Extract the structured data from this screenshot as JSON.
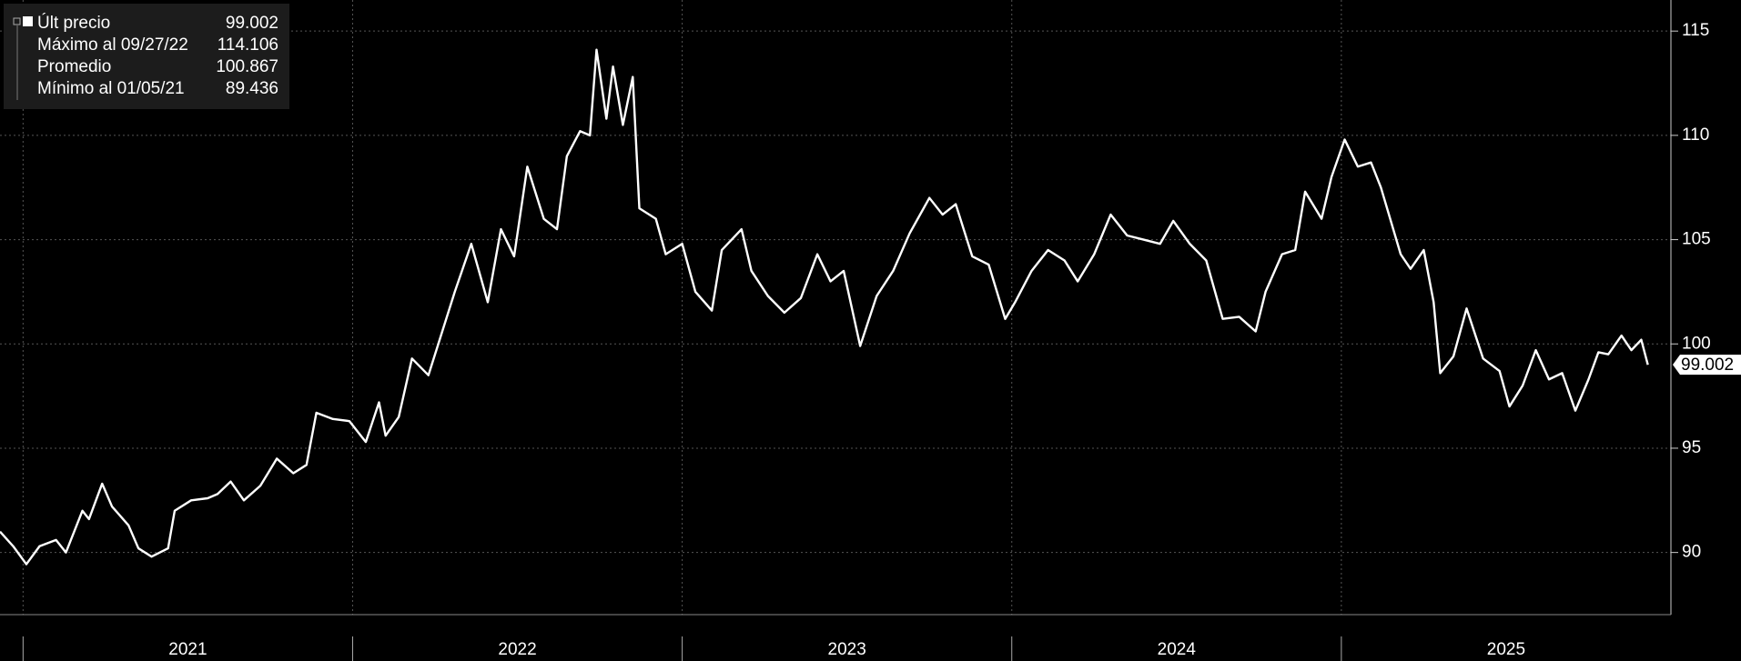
{
  "chart_data": {
    "type": "line",
    "x": [
      2020.93,
      2020.97,
      2021.01,
      2021.05,
      2021.1,
      2021.13,
      2021.18,
      2021.2,
      2021.24,
      2021.27,
      2021.32,
      2021.35,
      2021.39,
      2021.44,
      2021.46,
      2021.51,
      2021.56,
      2021.59,
      2021.63,
      2021.67,
      2021.72,
      2021.77,
      2021.82,
      2021.86,
      2021.89,
      2021.94,
      2021.99,
      2022.04,
      2022.08,
      2022.1,
      2022.14,
      2022.18,
      2022.23,
      2022.26,
      2022.31,
      2022.36,
      2022.41,
      2022.45,
      2022.49,
      2022.53,
      2022.58,
      2022.62,
      2022.65,
      2022.69,
      2022.72,
      2022.74,
      2022.77,
      2022.79,
      2022.82,
      2022.85,
      2022.87,
      2022.92,
      2022.95,
      2023.0,
      2023.04,
      2023.09,
      2023.12,
      2023.18,
      2023.21,
      2023.26,
      2023.31,
      2023.36,
      2023.41,
      2023.45,
      2023.49,
      2023.54,
      2023.59,
      2023.64,
      2023.69,
      2023.75,
      2023.79,
      2023.83,
      2023.88,
      2023.93,
      2023.98,
      2024.01,
      2024.06,
      2024.11,
      2024.16,
      2024.2,
      2024.25,
      2024.3,
      2024.35,
      2024.4,
      2024.45,
      2024.49,
      2024.54,
      2024.59,
      2024.64,
      2024.69,
      2024.74,
      2024.77,
      2024.82,
      2024.86,
      2024.89,
      2024.94,
      2024.97,
      2025.01,
      2025.05,
      2025.09,
      2025.12,
      2025.18,
      2025.21,
      2025.25,
      2025.28,
      2025.3,
      2025.34,
      2025.38,
      2025.43,
      2025.48,
      2025.51,
      2025.55,
      2025.59,
      2025.63,
      2025.67,
      2025.71,
      2025.75,
      2025.78,
      2025.81,
      2025.85,
      2025.88,
      2025.91,
      2025.93
    ],
    "series": [
      {
        "color": "#ffffff",
        "values": [
          91.0,
          90.3,
          89.436,
          90.3,
          90.6,
          90.0,
          92.0,
          91.6,
          93.3,
          92.2,
          91.3,
          90.2,
          89.8,
          90.2,
          92.0,
          92.5,
          92.6,
          92.8,
          93.4,
          92.5,
          93.2,
          94.5,
          93.8,
          94.2,
          96.7,
          96.4,
          96.3,
          95.3,
          97.2,
          95.6,
          96.5,
          99.3,
          98.5,
          100.0,
          102.5,
          104.8,
          102.0,
          105.5,
          104.2,
          108.5,
          106.0,
          105.5,
          109.0,
          110.2,
          110.0,
          114.106,
          110.8,
          113.3,
          110.5,
          112.8,
          106.5,
          106.0,
          104.3,
          104.8,
          102.5,
          101.6,
          104.5,
          105.5,
          103.5,
          102.3,
          101.5,
          102.2,
          104.3,
          103.0,
          103.5,
          99.9,
          102.3,
          103.5,
          105.3,
          107.0,
          106.2,
          106.7,
          104.2,
          103.8,
          101.2,
          102.0,
          103.5,
          104.5,
          104.0,
          103.0,
          104.3,
          106.2,
          105.2,
          105.0,
          104.8,
          105.9,
          104.8,
          104.0,
          101.2,
          101.3,
          100.6,
          102.5,
          104.3,
          104.5,
          107.3,
          106.0,
          108.0,
          109.8,
          108.5,
          108.7,
          107.5,
          104.3,
          103.6,
          104.5,
          102.0,
          98.6,
          99.4,
          101.7,
          99.3,
          98.7,
          97.0,
          98.0,
          99.7,
          98.3,
          98.6,
          96.8,
          98.3,
          99.6,
          99.5,
          100.4,
          99.7,
          100.2,
          99.002
        ]
      }
    ],
    "xlim": [
      2020.93,
      2026.0
    ],
    "xticks": [
      2021,
      2022,
      2023,
      2024,
      2025
    ],
    "ylim": [
      87.02,
      116.49
    ],
    "yticks": [
      90,
      95,
      100,
      105,
      110,
      115
    ],
    "grid": true,
    "stats": [
      {
        "label": "Últ precio",
        "value": 99.002
      },
      {
        "label": "Máximo al 09/27/22",
        "value": 114.106
      },
      {
        "label": "Promedio",
        "value": 100.867
      },
      {
        "label": "Mínimo al 01/05/21",
        "value": 89.436
      }
    ]
  }
}
